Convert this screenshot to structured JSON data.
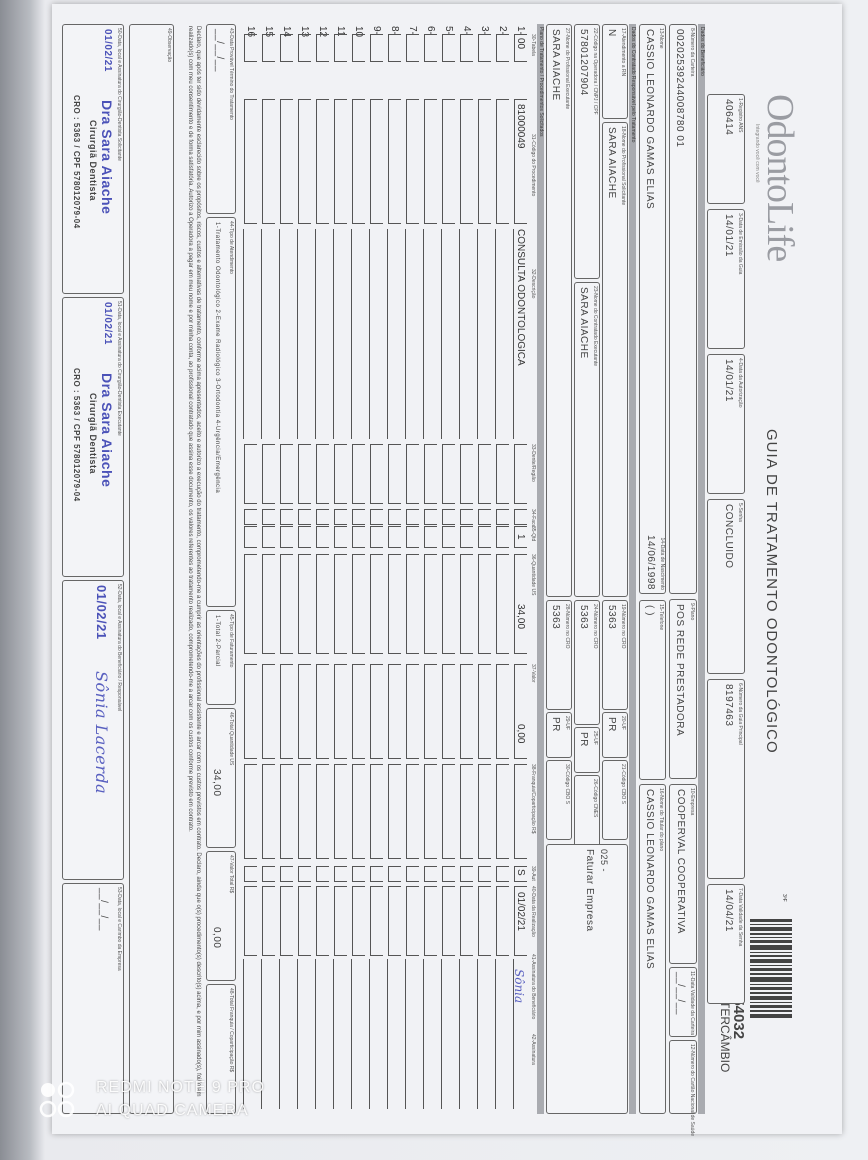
{
  "header": {
    "logo": "OdontoLife",
    "logo_tagline": "Integrando você com você",
    "title": "GUIA DE TRATAMENTO ODONTOLÓGICO",
    "mark": "3ªF",
    "guide_code": "454032",
    "guide_type": "INTERCÂMBIO"
  },
  "row1": [
    {
      "label": "1-Registro ANS",
      "value": "406414"
    },
    {
      "label": "3-Data de Emissão da Guia",
      "value": "14/01/21"
    },
    {
      "label": "4-Data da Autorização",
      "value": "14/01/21"
    },
    {
      "label": "5-Senha",
      "value": "CONCLUIDO"
    },
    {
      "label": "6-Número da Guia Principal",
      "value": "8197463"
    },
    {
      "label": "7-Data Validade da Senha",
      "value": "14/04/21"
    }
  ],
  "sections": {
    "beneficiary": "Dados do Beneficiário",
    "contracted": "Dados do Contratado Responsável pelo Tratamento",
    "plan": "Plano de Tratamento / Procedimentos Solicitados"
  },
  "beneficiary": {
    "card_label": "8-Número da Carteira",
    "card": "00202539244008780 01",
    "plan_label": "9-Plano",
    "plan": "POS REDE PRESTADORA",
    "company_label": "10-Empresa",
    "company": "COOPERVAL COOPERATIVA",
    "card_valid_label": "11-Data Validade da Carteira",
    "card_valid": "__/__/__",
    "cns_label": "12-Número do Cartão Nacional de Saúde",
    "cns": "",
    "name_label": "13-Nome",
    "name": "CASSIO LEONARDO GAMAS ELIAS",
    "birth_label": "14-Data de Nascimento",
    "birth": "14/06/1998",
    "phone_label": "15-Telefone",
    "phone": "(  )",
    "holder_label": "16-Nome do Titular do plano",
    "holder": "CASSIO LEONARDO GAMAS ELIAS"
  },
  "contracted": {
    "rn_label": "17-Atendimento a RN",
    "rn": "N",
    "req_name_label": "18-Nome do Profissional Solicitante",
    "req_name": "SARA AIACHE",
    "req_cro_label": "19-Número no CRO",
    "req_cro": "5363",
    "req_uf_label": "20-UF",
    "req_uf": "PR",
    "req_cbo_label": "21-Código CBO S",
    "req_cbo": "",
    "op_code_label": "22-Código na Operadora / CNPJ / CPF",
    "op_code": "57801207904",
    "contr_name_label": "23-Nome do Contratado Executante",
    "contr_name": "SARA AIACHE",
    "contr_cro_label": "24-Número no CRO",
    "contr_cro": "5363",
    "contr_uf_label": "25-UF",
    "contr_uf": "PR",
    "cnes_label": "26-Código CNES",
    "cnes": "",
    "billing_code": "025 -",
    "billing": "Faturar Empresa",
    "exec_name_label": "27-Nome do Profissional Executante",
    "exec_name": "SARA AIACHE",
    "exec_cro_label": "28-Número no CRO",
    "exec_cro": "5363",
    "exec_uf_label": "29-UF",
    "exec_uf": "PR",
    "exec_cbo_label": "30-Código CBO S",
    "exec_cbo": ""
  },
  "procedures": {
    "headers": [
      "30-Tabela",
      "31-Código do Procedimento",
      "32-Descrição",
      "33-Dente/Região",
      "34-Face",
      "35-Qtd",
      "36-Quantidade US",
      "37-Valor",
      "38-Franquia/Coparticipação R$",
      "39-Aut",
      "40-Data da Realização",
      "41-Assinatura do Beneficiário",
      "42-Assinatura"
    ],
    "rows": [
      {
        "n": "1-",
        "table": "00",
        "code": "81000049",
        "desc": "CONSULTA ODONTOLOGICA",
        "tooth": "",
        "face": "",
        "qty": "1",
        "us": "34,00",
        "value": "0,00",
        "copay": "",
        "aut": "S",
        "date": "01/02/21",
        "signed": "Sônia"
      },
      {
        "n": "2-"
      },
      {
        "n": "3-"
      },
      {
        "n": "4-"
      },
      {
        "n": "5-"
      },
      {
        "n": "6-"
      },
      {
        "n": "7-"
      },
      {
        "n": "8-"
      },
      {
        "n": "9-"
      },
      {
        "n": "10"
      },
      {
        "n": "11"
      },
      {
        "n": "12"
      },
      {
        "n": "13"
      },
      {
        "n": "14"
      },
      {
        "n": "15"
      },
      {
        "n": "16"
      }
    ]
  },
  "totals": {
    "end_label": "43-Data Provável Término do Tratamento",
    "end": "__/__/__",
    "type_label": "44-Tipo de Atendimento",
    "type_opts": "1-Tratamento Odontológico 2-Exame Radiológico 3-Ortodontia 4-Urgência/Emergência",
    "billing_label": "45-Tipo de Faturamento",
    "billing_opts": "1-Total 2-Parcial",
    "us_label": "46-Total Quantidade US",
    "us": "34,00",
    "value_label": "47-Valor Total R$",
    "value": "0,00",
    "copay_label": "48-Total Franquia / Coparticipação R$",
    "copay": ""
  },
  "declaration": "Declaro, que após ter sido devidamente esclarecido sobre os propósitos, riscos, custos e alternativas de tratamento, conforme acima apresentados, aceito e autorizo a execução do tratamento, comprometendo-me a cumprir as orientações do profissional assistente e arcar com os custos previstos em contrato. Declaro, ainda que o(s) procedimento(s) descrito(s) acima, e por mim assinado(s), foi/foram realizado(s) com meu consentimento e de forma satisfatória. Autorizo a Operadora a pagar em meu nome e por minha conta, ao profissional contratado que assina esse documento, os valores referentes ao tratamento realizado, comprometendo-me a arcar com os custos conforme previsto em contrato.",
  "observation_label": "49-Observação",
  "signatures": {
    "req_label": "50-Data, local e Assinatura do Cirurgião-Dentista Solicitante",
    "req_date": "01/02/21",
    "stamp_name": "Dra Sara Aiache",
    "stamp_role": "Cirurgiã Dentista",
    "stamp_id": "CRO : 5363 / CPF 578012079-04",
    "exec_label": "51-Data, local e Assinatura do Cirurgião-Dentista Executante",
    "exec_date": "01/02/21",
    "ben_label": "52-Data, local e Assinatura do Beneficiário / Responsável",
    "ben_date": "01/02/21",
    "ben_sig": "Sônia Lacerda",
    "company_label": "53-Data, local e Carimbo da Empresa",
    "company_date": "__/__/__"
  },
  "watermark": {
    "line1": "REDMI NOTE 9 PRO",
    "line2": "AI QUAD CAMERA"
  }
}
